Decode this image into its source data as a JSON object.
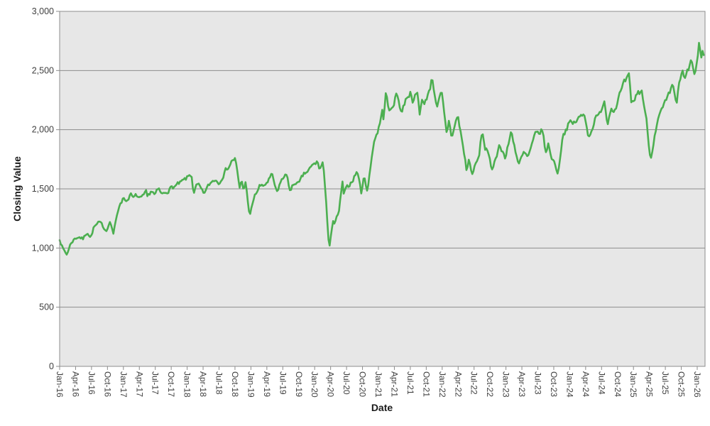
{
  "chart_data": {
    "type": "line",
    "title": "",
    "xlabel": "Date",
    "ylabel": "Closing Value",
    "ylim": [
      0,
      3000
    ],
    "y_tick_step": 500,
    "grid": "horizontal",
    "legend": "none",
    "line_color": "#4CAF50",
    "plot_bg_color": "#E7E7E7",
    "grid_color": "#8C8C8C",
    "tick_label_color": "#404040",
    "x_range": [
      "2016-01",
      "2026-02"
    ],
    "daily_volatility_pct": 1.4,
    "y_ticks": [
      "0",
      "500",
      "1,000",
      "1,500",
      "2,000",
      "2,500",
      "3,000"
    ],
    "x_ticks": [
      "Jan-16",
      "Apr-16",
      "Jul-16",
      "Oct-16",
      "Jan-17",
      "Apr-17",
      "Jul-17",
      "Oct-17",
      "Jan-18",
      "Apr-18",
      "Jul-18",
      "Oct-18",
      "Jan-19",
      "Apr-19",
      "Jul-19",
      "Oct-19",
      "Jan-20",
      "Apr-20",
      "Jul-20",
      "Oct-20",
      "Jan-21",
      "Apr-21",
      "Jul-21",
      "Oct-21",
      "Jan-22",
      "Apr-22",
      "Jul-22",
      "Oct-22",
      "Jan-23",
      "Apr-23",
      "Jul-23",
      "Oct-23",
      "Jan-24",
      "Apr-24",
      "Jul-24",
      "Oct-24",
      "Jan-25",
      "Apr-25",
      "Jul-25",
      "Oct-25",
      "Jan-26"
    ],
    "series": [
      {
        "name": "Closing Value",
        "points": [
          [
            "2016-01-01",
            1080
          ],
          [
            "2016-01-20",
            995
          ],
          [
            "2016-02-11",
            945
          ],
          [
            "2016-03-04",
            1040
          ],
          [
            "2016-03-22",
            1075
          ],
          [
            "2016-04-20",
            1100
          ],
          [
            "2016-05-13",
            1075
          ],
          [
            "2016-06-08",
            1140
          ],
          [
            "2016-06-27",
            1090
          ],
          [
            "2016-07-14",
            1175
          ],
          [
            "2016-08-15",
            1210
          ],
          [
            "2016-09-09",
            1175
          ],
          [
            "2016-09-26",
            1150
          ],
          [
            "2016-10-12",
            1235
          ],
          [
            "2016-10-25",
            1190
          ],
          [
            "2016-11-04",
            1120
          ],
          [
            "2016-11-30",
            1300
          ],
          [
            "2016-12-13",
            1390
          ],
          [
            "2017-01-06",
            1430
          ],
          [
            "2017-01-19",
            1395
          ],
          [
            "2017-02-10",
            1460
          ],
          [
            "2017-02-27",
            1415
          ],
          [
            "2017-03-15",
            1440
          ],
          [
            "2017-04-13",
            1410
          ],
          [
            "2017-05-09",
            1460
          ],
          [
            "2017-05-17",
            1415
          ],
          [
            "2017-06-09",
            1490
          ],
          [
            "2017-06-29",
            1445
          ],
          [
            "2017-07-19",
            1490
          ],
          [
            "2017-08-10",
            1445
          ],
          [
            "2017-09-18",
            1500
          ],
          [
            "2017-10-20",
            1520
          ],
          [
            "2017-11-20",
            1540
          ],
          [
            "2017-12-18",
            1570
          ],
          [
            "2018-01-26",
            1625
          ],
          [
            "2018-02-08",
            1455
          ],
          [
            "2018-02-26",
            1530
          ],
          [
            "2018-03-12",
            1510
          ],
          [
            "2018-04-02",
            1450
          ],
          [
            "2018-04-18",
            1490
          ],
          [
            "2018-05-14",
            1550
          ],
          [
            "2018-06-12",
            1590
          ],
          [
            "2018-06-27",
            1550
          ],
          [
            "2018-07-25",
            1630
          ],
          [
            "2018-08-29",
            1700
          ],
          [
            "2018-09-20",
            1750
          ],
          [
            "2018-10-03",
            1752
          ],
          [
            "2018-10-29",
            1480
          ],
          [
            "2018-11-07",
            1580
          ],
          [
            "2018-11-20",
            1490
          ],
          [
            "2018-12-03",
            1560
          ],
          [
            "2018-12-24",
            1255
          ],
          [
            "2019-01-18",
            1420
          ],
          [
            "2019-02-22",
            1530
          ],
          [
            "2019-03-08",
            1510
          ],
          [
            "2019-04-30",
            1610
          ],
          [
            "2019-05-31",
            1450
          ],
          [
            "2019-06-20",
            1570
          ],
          [
            "2019-07-26",
            1620
          ],
          [
            "2019-08-14",
            1470
          ],
          [
            "2019-08-28",
            1520
          ],
          [
            "2019-09-16",
            1565
          ],
          [
            "2019-10-02",
            1535
          ],
          [
            "2019-10-28",
            1610
          ],
          [
            "2019-11-27",
            1655
          ],
          [
            "2019-12-27",
            1700
          ],
          [
            "2020-01-17",
            1725
          ],
          [
            "2020-01-31",
            1665
          ],
          [
            "2020-02-19",
            1732
          ],
          [
            "2020-03-23",
            1000
          ],
          [
            "2020-04-14",
            1230
          ],
          [
            "2020-04-21",
            1185
          ],
          [
            "2020-05-18",
            1305
          ],
          [
            "2020-06-08",
            1545
          ],
          [
            "2020-06-15",
            1455
          ],
          [
            "2020-07-20",
            1540
          ],
          [
            "2020-08-18",
            1615
          ],
          [
            "2020-09-02",
            1655
          ],
          [
            "2020-09-24",
            1470
          ],
          [
            "2020-10-12",
            1610
          ],
          [
            "2020-10-30",
            1480
          ],
          [
            "2020-11-16",
            1680
          ],
          [
            "2020-12-04",
            1900
          ],
          [
            "2020-12-31",
            2005
          ],
          [
            "2021-01-25",
            2160
          ],
          [
            "2021-01-29",
            2090
          ],
          [
            "2021-02-12",
            2315
          ],
          [
            "2021-03-04",
            2130
          ],
          [
            "2021-03-26",
            2230
          ],
          [
            "2021-04-16",
            2305
          ],
          [
            "2021-05-12",
            2150
          ],
          [
            "2021-06-14",
            2295
          ],
          [
            "2021-07-06",
            2320
          ],
          [
            "2021-07-19",
            2240
          ],
          [
            "2021-08-10",
            2310
          ],
          [
            "2021-08-25",
            2125
          ],
          [
            "2021-09-07",
            2280
          ],
          [
            "2021-09-22",
            2200
          ],
          [
            "2021-11-05",
            2440
          ],
          [
            "2021-12-03",
            2190
          ],
          [
            "2021-12-28",
            2300
          ],
          [
            "2022-01-27",
            1945
          ],
          [
            "2022-02-09",
            2080
          ],
          [
            "2022-02-24",
            1940
          ],
          [
            "2022-03-29",
            2120
          ],
          [
            "2022-04-29",
            1860
          ],
          [
            "2022-05-20",
            1650
          ],
          [
            "2022-06-02",
            1755
          ],
          [
            "2022-06-17",
            1625
          ],
          [
            "2022-07-29",
            1760
          ],
          [
            "2022-08-16",
            1990
          ],
          [
            "2022-09-06",
            1820
          ],
          [
            "2022-09-13",
            1870
          ],
          [
            "2022-10-12",
            1630
          ],
          [
            "2022-11-01",
            1765
          ],
          [
            "2022-11-25",
            1870
          ],
          [
            "2022-12-13",
            1830
          ],
          [
            "2022-12-28",
            1755
          ],
          [
            "2023-02-02",
            1990
          ],
          [
            "2023-03-13",
            1705
          ],
          [
            "2023-04-14",
            1800
          ],
          [
            "2023-05-04",
            1755
          ],
          [
            "2023-06-16",
            1945
          ],
          [
            "2023-07-27",
            1995
          ],
          [
            "2023-08-18",
            1795
          ],
          [
            "2023-09-01",
            1875
          ],
          [
            "2023-09-21",
            1760
          ],
          [
            "2023-10-06",
            1720
          ],
          [
            "2023-10-27",
            1630
          ],
          [
            "2023-11-20",
            1950
          ],
          [
            "2023-12-28",
            2060
          ],
          [
            "2024-01-17",
            2040
          ],
          [
            "2024-02-23",
            2095
          ],
          [
            "2024-03-28",
            2130
          ],
          [
            "2024-04-19",
            1935
          ],
          [
            "2024-05-21",
            2085
          ],
          [
            "2024-06-20",
            2115
          ],
          [
            "2024-07-16",
            2270
          ],
          [
            "2024-08-05",
            2050
          ],
          [
            "2024-08-26",
            2230
          ],
          [
            "2024-09-06",
            2150
          ],
          [
            "2024-10-15",
            2300
          ],
          [
            "2024-11-11",
            2380
          ],
          [
            "2024-12-06",
            2440
          ],
          [
            "2024-12-19",
            2190
          ],
          [
            "2025-01-24",
            2310
          ],
          [
            "2025-02-19",
            2330
          ],
          [
            "2025-03-13",
            2090
          ],
          [
            "2025-04-08",
            1740
          ],
          [
            "2025-05-02",
            1990
          ],
          [
            "2025-05-19",
            2080
          ],
          [
            "2025-06-16",
            2170
          ],
          [
            "2025-07-15",
            2250
          ],
          [
            "2025-08-14",
            2360
          ],
          [
            "2025-09-05",
            2225
          ],
          [
            "2025-09-22",
            2400
          ],
          [
            "2025-10-08",
            2480
          ],
          [
            "2025-10-20",
            2400
          ],
          [
            "2025-11-14",
            2520
          ],
          [
            "2025-12-03",
            2575
          ],
          [
            "2025-12-18",
            2430
          ],
          [
            "2026-01-12",
            2710
          ],
          [
            "2026-01-21",
            2580
          ],
          [
            "2026-02-02",
            2660
          ],
          [
            "2026-02-13",
            2625
          ]
        ]
      }
    ]
  }
}
